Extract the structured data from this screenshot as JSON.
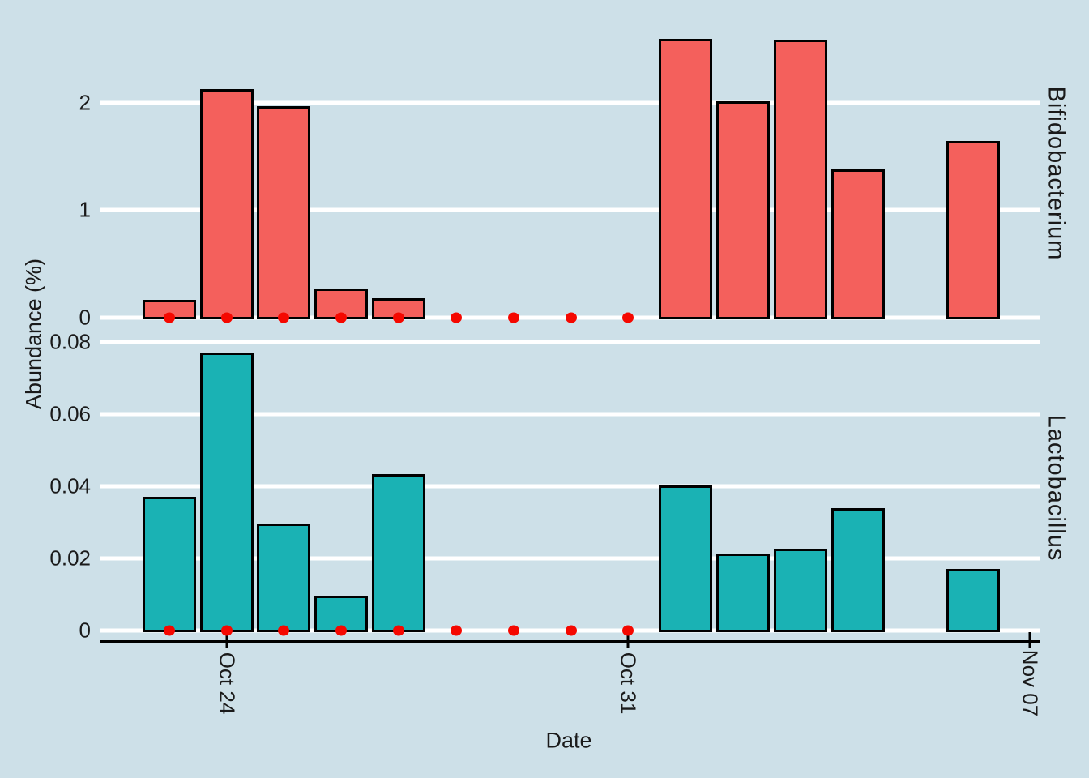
{
  "figure": {
    "background": "#cde0e8",
    "grid_color": "#ffffff",
    "text_color": "#1a1a1a",
    "bar_outline_color": "#000000"
  },
  "chart_data": {
    "type": "bar",
    "title": "",
    "xlabel": "Date",
    "ylabel": "Abundance (%)",
    "legend": "none",
    "grid": "horizontal white major gridlines only",
    "facet_layout": "two stacked row panels, strip labels rotated on right side",
    "x_dates": [
      "Oct 23",
      "Oct 24",
      "Oct 25",
      "Oct 26",
      "Oct 27",
      "Oct 28",
      "Oct 29",
      "Oct 30",
      "Oct 31",
      "Nov 01",
      "Nov 02",
      "Nov 03",
      "Nov 04",
      "Nov 05",
      "Nov 06"
    ],
    "x_tick_labels": [
      "Oct 24",
      "Oct 31",
      "Nov 07"
    ],
    "panels": [
      {
        "facet": "Bifidobacterium",
        "bar_color": "#f4605c",
        "y_tick_labels": [
          "0",
          "1",
          "2"
        ],
        "y_tick_values": [
          0,
          1,
          2
        ],
        "ylim": [
          0,
          2.72
        ],
        "values": [
          0.16,
          2.13,
          1.97,
          0.27,
          0.18,
          0,
          0,
          0,
          0,
          2.6,
          2.02,
          2.59,
          1.38,
          null,
          1.65
        ]
      },
      {
        "facet": "Lactobacillus",
        "bar_color": "#1ab2b4",
        "y_tick_labels": [
          "0",
          "0.02",
          "0.04",
          "0.06",
          "0.08"
        ],
        "y_tick_values": [
          0,
          0.02,
          0.04,
          0.06,
          0.08
        ],
        "ylim": [
          0,
          0.0805
        ],
        "values": [
          0.037,
          0.077,
          0.0295,
          0.0095,
          0.0433,
          0,
          0,
          0,
          0,
          0.0402,
          0.0212,
          0.0226,
          0.0338,
          null,
          0.017
        ]
      }
    ],
    "zero_markers": {
      "color": "#f50800",
      "description": "red dots on the zero baseline of both panels",
      "dates": [
        "Oct 23",
        "Oct 24",
        "Oct 25",
        "Oct 26",
        "Oct 27",
        "Oct 28",
        "Oct 29",
        "Oct 30",
        "Oct 31"
      ]
    }
  }
}
